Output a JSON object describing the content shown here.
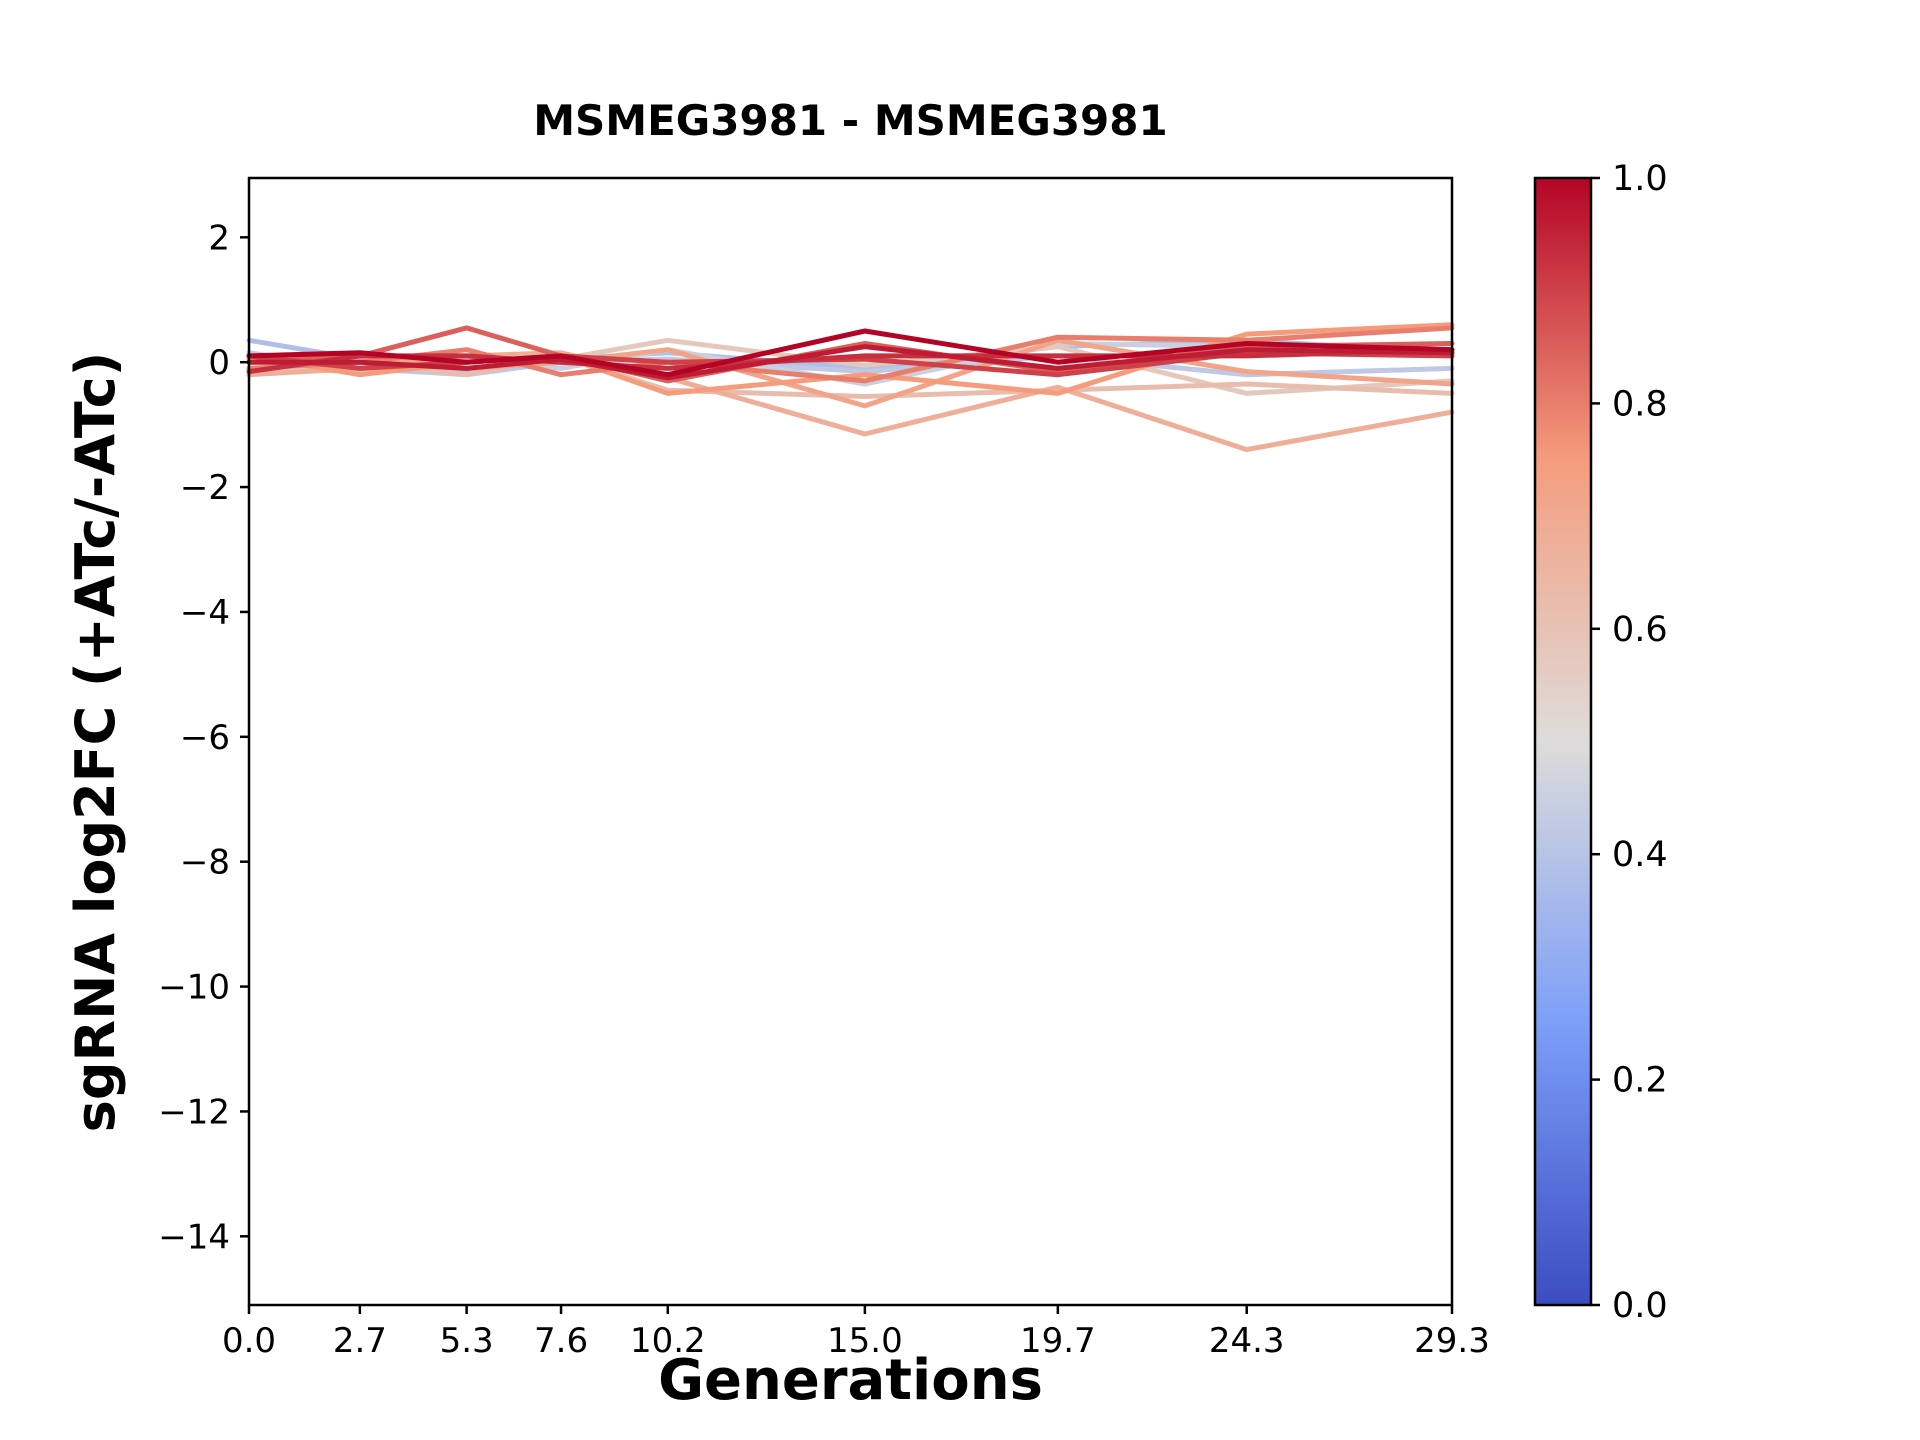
{
  "title": "MSMEG3981 - MSMEG3981",
  "chart_data": {
    "type": "line",
    "title": "MSMEG3981 - MSMEG3981",
    "xlabel": "Generations",
    "ylabel": "sgRNA log2FC (+ATc/-ATc)",
    "grid": false,
    "legend": "none",
    "colormap": "coolwarm",
    "x": [
      0.0,
      2.7,
      5.3,
      7.6,
      10.2,
      15.0,
      19.7,
      24.3,
      29.3
    ],
    "xticklabels": [
      "0.0",
      "2.7",
      "5.3",
      "7.6",
      "10.2",
      "15.0",
      "19.7",
      "24.3",
      "29.3"
    ],
    "xlim": [
      0.0,
      29.3
    ],
    "yticks": [
      2,
      0,
      -2,
      -4,
      -6,
      -8,
      -10,
      -12,
      -14
    ],
    "yticklabels": [
      "2",
      "0",
      "−2",
      "−4",
      "−6",
      "−8",
      "−10",
      "−12",
      "−14"
    ],
    "ylim": [
      -15.1,
      2.95
    ],
    "colorbar": {
      "min": 0.0,
      "max": 1.0,
      "tick_values": [
        1.0,
        0.8,
        0.6,
        0.4,
        0.2,
        0.0
      ],
      "tick_labels": [
        "1.0",
        "0.8",
        "0.6",
        "0.4",
        "0.2",
        "0.0"
      ]
    },
    "series": [
      {
        "color_value": 0.38,
        "values": [
          0.35,
          0.05,
          -0.15,
          0.05,
          0.15,
          -0.1,
          0.25,
          0.35,
          0.15
        ]
      },
      {
        "color_value": 0.42,
        "values": [
          0.15,
          -0.1,
          -0.2,
          0.0,
          0.05,
          -0.15,
          0.1,
          -0.2,
          -0.1
        ]
      },
      {
        "color_value": 0.45,
        "values": [
          0.0,
          0.1,
          0.05,
          -0.1,
          0.2,
          -0.35,
          0.3,
          0.25,
          0.2
        ]
      },
      {
        "color_value": 0.58,
        "values": [
          -0.1,
          -0.15,
          0.1,
          0.05,
          0.35,
          -0.05,
          0.25,
          -0.5,
          -0.3
        ]
      },
      {
        "color_value": 0.62,
        "values": [
          0.1,
          0.0,
          -0.2,
          0.1,
          -0.45,
          -0.55,
          -0.45,
          -0.35,
          -0.5
        ]
      },
      {
        "color_value": 0.68,
        "values": [
          -0.2,
          -0.1,
          0.1,
          0.15,
          -0.25,
          -1.15,
          -0.4,
          -1.4,
          -0.8
        ]
      },
      {
        "color_value": 0.72,
        "values": [
          0.05,
          0.1,
          -0.1,
          0.0,
          0.2,
          -0.7,
          0.35,
          -0.15,
          -0.35
        ]
      },
      {
        "color_value": 0.75,
        "values": [
          0.1,
          -0.2,
          0.0,
          0.1,
          -0.5,
          -0.2,
          -0.5,
          0.45,
          0.6
        ]
      },
      {
        "color_value": 0.8,
        "values": [
          -0.1,
          0.0,
          0.2,
          -0.2,
          0.0,
          -0.3,
          0.4,
          0.35,
          0.55
        ]
      },
      {
        "color_value": 0.85,
        "values": [
          0.0,
          0.1,
          0.55,
          0.1,
          -0.3,
          0.3,
          -0.15,
          0.25,
          0.3
        ]
      },
      {
        "color_value": 0.9,
        "values": [
          0.1,
          -0.1,
          0.0,
          0.1,
          0.0,
          0.05,
          -0.2,
          0.15,
          0.1
        ]
      },
      {
        "color_value": 0.93,
        "values": [
          -0.15,
          0.1,
          0.1,
          0.0,
          -0.1,
          0.1,
          0.1,
          0.1,
          0.2
        ]
      },
      {
        "color_value": 0.96,
        "values": [
          0.0,
          0.0,
          -0.1,
          0.05,
          -0.25,
          0.25,
          -0.1,
          0.2,
          0.15
        ]
      },
      {
        "color_value": 1.0,
        "values": [
          0.1,
          0.15,
          0.0,
          0.1,
          -0.2,
          0.5,
          0.0,
          0.3,
          0.2
        ]
      }
    ]
  }
}
